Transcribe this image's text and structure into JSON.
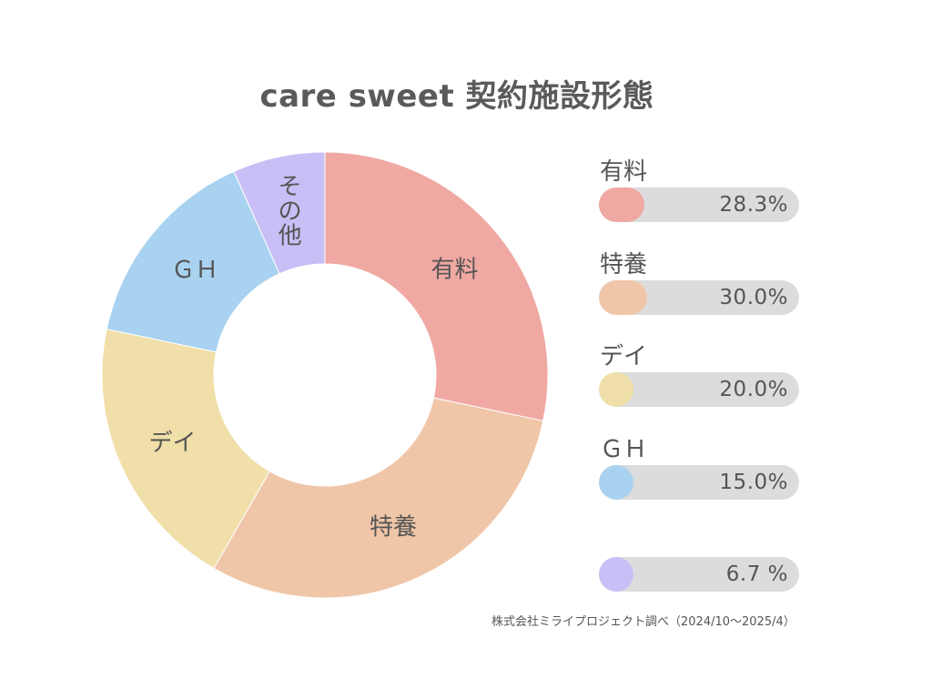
{
  "title": "care sweet 契約施設形態",
  "source": "株式会社ミライプロジェクト調べ（2024/10〜2025/4）",
  "chart_data": {
    "type": "donut",
    "categories": [
      "有料",
      "特養",
      "デイ",
      "ＧＨ",
      "その他"
    ],
    "values": [
      28.3,
      30.0,
      20.0,
      15.0,
      6.7
    ],
    "unit": "%",
    "colors": [
      "#f0a8a3",
      "#f0c6a8",
      "#f0dfa8",
      "#a8d2f0",
      "#c7bff5"
    ],
    "slice_labels": [
      "有料",
      "特養",
      "デイ",
      "ＧＨ",
      "その他"
    ],
    "legend": [
      {
        "label": "有料",
        "value_text": "28.3%",
        "value": 28.3
      },
      {
        "label": "特養",
        "value_text": "30.0%",
        "value": 30.0
      },
      {
        "label": "デイ",
        "value_text": "20.0%",
        "value": 20.0
      },
      {
        "label": "ＧＨ",
        "value_text": "15.0%",
        "value": 15.0
      },
      {
        "label": "",
        "value_text": "6.7 %",
        "value": 6.7
      }
    ]
  }
}
